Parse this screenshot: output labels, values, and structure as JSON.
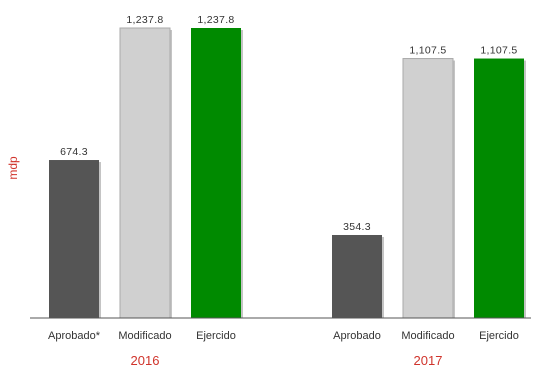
{
  "chart_data": {
    "type": "bar",
    "ylabel": "mdp",
    "ylim": [
      0,
      1300
    ],
    "grid": false,
    "legend": "none",
    "groups": [
      {
        "label": "2016",
        "bars": [
          {
            "category": "Aprobado*",
            "value": 674.3,
            "value_label": "674.3",
            "color": "#555555"
          },
          {
            "category": "Modificado",
            "value": 1237.8,
            "value_label": "1,237.8",
            "color": "#d0d0d0"
          },
          {
            "category": "Ejercido",
            "value": 1237.8,
            "value_label": "1,237.8",
            "color": "#008a00"
          }
        ]
      },
      {
        "label": "2017",
        "bars": [
          {
            "category": "Aprobado",
            "value": 354.3,
            "value_label": "354.3",
            "color": "#555555"
          },
          {
            "category": "Modificado",
            "value": 1107.5,
            "value_label": "1,107.5",
            "color": "#d0d0d0"
          },
          {
            "category": "Ejercido",
            "value": 1107.5,
            "value_label": "1,107.5",
            "color": "#008a00"
          }
        ]
      }
    ]
  }
}
